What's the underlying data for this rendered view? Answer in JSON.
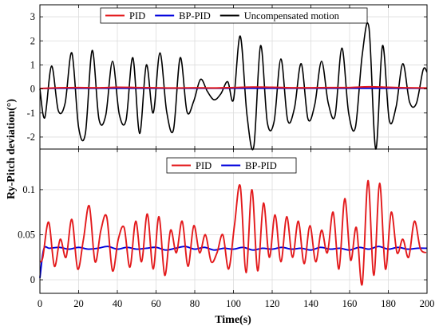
{
  "chart_data": [
    {
      "type": "line",
      "panel": "top",
      "x_range": [
        0,
        200
      ],
      "ylim": [
        -2.5,
        3.5
      ],
      "y_ticks": [
        -2,
        -1,
        0,
        1,
        2,
        3
      ],
      "grid": true,
      "legend_position": "top-center",
      "series": [
        {
          "name": "PID",
          "color": "#e31a1c",
          "x": [
            0,
            10,
            20,
            30,
            40,
            50,
            60,
            70,
            80,
            90,
            100,
            110,
            120,
            130,
            140,
            150,
            160,
            170,
            180,
            190,
            200
          ],
          "y": [
            0.02,
            0.05,
            0.06,
            0.05,
            0.07,
            0.06,
            0.05,
            0.04,
            0.05,
            0.04,
            0.06,
            0.08,
            0.07,
            0.05,
            0.05,
            0.06,
            0.06,
            0.09,
            0.07,
            0.05,
            0.04
          ]
        },
        {
          "name": "BP-PID",
          "color": "#0000dd",
          "x": [
            0,
            10,
            20,
            30,
            40,
            50,
            60,
            70,
            80,
            90,
            100,
            110,
            120,
            130,
            140,
            150,
            160,
            170,
            180,
            190,
            200
          ],
          "y": [
            0.02,
            0.03,
            0.03,
            0.03,
            0.03,
            0.03,
            0.03,
            0.03,
            0.03,
            0.03,
            0.03,
            0.03,
            0.03,
            0.03,
            0.03,
            0.03,
            0.03,
            0.03,
            0.03,
            0.03,
            0.03
          ]
        },
        {
          "name": "Uncompensated motion",
          "color": "#000000",
          "x": [
            0,
            2.5,
            6,
            9.5,
            13,
            16.5,
            20,
            23.5,
            27,
            30.5,
            34,
            37.5,
            41,
            44.5,
            48,
            51.5,
            55,
            58.5,
            62,
            65.5,
            69,
            72.5,
            76,
            79.5,
            83,
            86.5,
            90,
            93.5,
            97,
            100,
            103.5,
            107,
            110.5,
            114,
            117.5,
            121,
            124.5,
            128,
            131.5,
            135,
            138.5,
            142,
            145.5,
            149,
            152.5,
            156,
            159.5,
            163,
            166.5,
            170,
            173.5,
            177,
            180.5,
            184,
            187.5,
            191,
            194.5,
            198,
            200
          ],
          "y": [
            0.0,
            -1.2,
            0.95,
            -0.9,
            -0.6,
            1.5,
            -1.6,
            -1.85,
            1.6,
            -1.25,
            -1.1,
            1.15,
            -1.05,
            -1.3,
            1.3,
            -1.85,
            1.0,
            -1.0,
            1.5,
            -0.95,
            -1.7,
            1.3,
            -0.95,
            -0.5,
            0.4,
            -0.1,
            -0.45,
            -0.2,
            0.3,
            -0.45,
            2.2,
            -1.1,
            -2.4,
            1.8,
            -1.4,
            -1.35,
            1.25,
            -1.3,
            -0.8,
            1.05,
            -1.25,
            -0.65,
            1.15,
            -0.6,
            -1.1,
            1.7,
            -1.0,
            -1.6,
            1.4,
            2.55,
            -2.5,
            1.8,
            -1.3,
            -0.75,
            1.05,
            -0.55,
            -0.6,
            0.8,
            0.7
          ]
        }
      ]
    },
    {
      "type": "line",
      "panel": "bottom",
      "x_range": [
        0,
        200
      ],
      "ylim": [
        -0.015,
        0.145
      ],
      "y_ticks": [
        0,
        0.05,
        0.1
      ],
      "y_tick_labels": [
        "0",
        "0.05",
        "0.1"
      ],
      "grid": true,
      "legend_position": "top-center",
      "series": [
        {
          "name": "PID",
          "color": "#e31a1c",
          "x": [
            0,
            1.5,
            4.5,
            7.5,
            10.5,
            13.5,
            16.5,
            19.5,
            22.5,
            25.5,
            28.5,
            31.5,
            34.5,
            37.5,
            40.5,
            43.5,
            46.5,
            49.5,
            52.5,
            55.5,
            58.5,
            61.5,
            64.5,
            67.5,
            70.5,
            73.5,
            76.5,
            79.5,
            82.5,
            85.5,
            88.5,
            91.5,
            94.5,
            97.5,
            100.5,
            103.5,
            106.5,
            109.5,
            112.5,
            115.5,
            118.5,
            121.5,
            124.5,
            127.5,
            130.5,
            133.5,
            136.5,
            139.5,
            142.5,
            145.5,
            148.5,
            151.5,
            154.5,
            157.5,
            160.5,
            163.5,
            166.5,
            169.5,
            172.5,
            175.5,
            178.5,
            181.5,
            184.5,
            187.5,
            190.5,
            193.5,
            196.5,
            199.5
          ],
          "y": [
            0.02,
            0.025,
            0.064,
            0.015,
            0.045,
            0.025,
            0.067,
            0.012,
            0.045,
            0.082,
            0.02,
            0.055,
            0.07,
            0.01,
            0.045,
            0.058,
            0.014,
            0.065,
            0.02,
            0.073,
            0.012,
            0.07,
            0.005,
            0.055,
            0.03,
            0.065,
            0.015,
            0.06,
            0.03,
            0.05,
            0.02,
            0.03,
            0.05,
            0.012,
            0.06,
            0.104,
            0.008,
            0.1,
            0.01,
            0.085,
            0.025,
            0.072,
            0.02,
            0.07,
            0.025,
            0.065,
            0.018,
            0.06,
            0.02,
            0.055,
            0.03,
            0.075,
            0.012,
            0.09,
            0.022,
            0.058,
            -0.005,
            0.11,
            0.005,
            0.107,
            0.012,
            0.075,
            0.03,
            0.045,
            0.025,
            0.065,
            0.035,
            0.03
          ]
        },
        {
          "name": "BP-PID",
          "color": "#0000dd",
          "x": [
            0,
            2,
            5,
            10,
            15,
            20,
            25,
            30,
            35,
            40,
            45,
            50,
            55,
            60,
            65,
            70,
            75,
            80,
            85,
            90,
            95,
            100,
            105,
            110,
            115,
            120,
            125,
            130,
            135,
            140,
            145,
            150,
            155,
            160,
            165,
            170,
            175,
            180,
            185,
            190,
            195,
            200
          ],
          "y": [
            0.002,
            0.034,
            0.035,
            0.036,
            0.034,
            0.036,
            0.034,
            0.035,
            0.037,
            0.034,
            0.036,
            0.034,
            0.035,
            0.036,
            0.033,
            0.035,
            0.037,
            0.034,
            0.036,
            0.033,
            0.035,
            0.034,
            0.036,
            0.033,
            0.035,
            0.034,
            0.036,
            0.034,
            0.035,
            0.033,
            0.036,
            0.034,
            0.035,
            0.033,
            0.036,
            0.034,
            0.037,
            0.034,
            0.036,
            0.034,
            0.035,
            0.035
          ]
        }
      ]
    }
  ],
  "axes": {
    "xlabel": "Time(s)",
    "ylabel": "Ry-Pitch deviation(°)",
    "x_ticks": [
      0,
      20,
      40,
      60,
      80,
      100,
      120,
      140,
      160,
      180,
      200
    ]
  },
  "legend": {
    "top": [
      "PID",
      "BP-PID",
      "Uncompensated motion"
    ],
    "bottom": [
      "PID",
      "BP-PID"
    ]
  }
}
